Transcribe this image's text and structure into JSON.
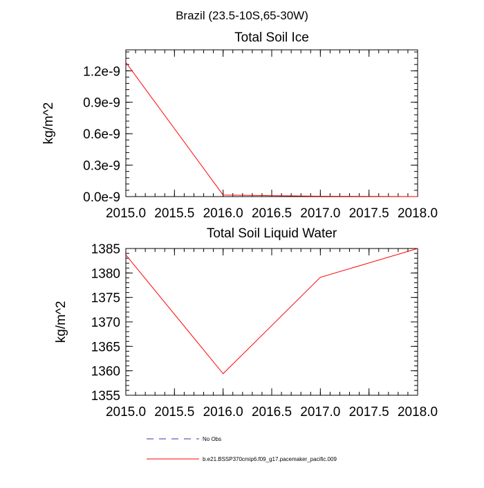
{
  "figure": {
    "title": "Brazil (23.5-10S,65-30W)"
  },
  "chart_data": [
    {
      "type": "line",
      "title": "Total Soil Ice",
      "xlabel": "",
      "ylabel": "kg/m^2",
      "xlim": [
        2015.0,
        2018.0
      ],
      "ylim": [
        0.0,
        1.4e-09
      ],
      "xticks": [
        2015.0,
        2015.5,
        2016.0,
        2016.5,
        2017.0,
        2017.5,
        2018.0
      ],
      "xtick_labels": [
        "2015.0",
        "2015.5",
        "2016.0",
        "2016.5",
        "2017.0",
        "2017.5",
        "2018.0"
      ],
      "yticks": [
        0.0,
        3e-10,
        6e-10,
        9e-10,
        1.2e-09
      ],
      "ytick_labels": [
        "0.0e-9",
        "0.3e-9",
        "0.6e-9",
        "0.9e-9",
        "1.2e-9"
      ],
      "y_minor_step": 6e-11,
      "grid": false,
      "series": [
        {
          "name": "b.e21.BSSP370cmip6.f09_g17.pacemaker_pacific.009",
          "color": "#ff0000",
          "x": [
            2015,
            2016,
            2017,
            2018
          ],
          "y": [
            1.28e-09,
            1.5e-11,
            3e-12,
            0.0
          ]
        }
      ]
    },
    {
      "type": "line",
      "title": "Total Soil Liquid Water",
      "xlabel": "",
      "ylabel": "kg/m^2",
      "xlim": [
        2015.0,
        2018.0
      ],
      "ylim": [
        1355,
        1385
      ],
      "xticks": [
        2015.0,
        2015.5,
        2016.0,
        2016.5,
        2017.0,
        2017.5,
        2018.0
      ],
      "xtick_labels": [
        "2015.0",
        "2015.5",
        "2016.0",
        "2016.5",
        "2017.0",
        "2017.5",
        "2018.0"
      ],
      "yticks": [
        1355,
        1360,
        1365,
        1370,
        1375,
        1380,
        1385
      ],
      "ytick_labels": [
        "1355",
        "1360",
        "1365",
        "1370",
        "1375",
        "1380",
        "1385"
      ],
      "y_minor_step": 1,
      "grid": false,
      "series": [
        {
          "name": "b.e21.BSSP370cmip6.f09_g17.pacemaker_pacific.009",
          "color": "#ff0000",
          "x": [
            2015,
            2016,
            2017,
            2018
          ],
          "y": [
            1383.7,
            1359.4,
            1379.1,
            1385.0
          ]
        }
      ]
    }
  ],
  "legend": {
    "placement": "bottom-center",
    "items": [
      {
        "label": "No Obs",
        "color": "#3333aa",
        "style": "dashed"
      },
      {
        "label": "b.e21.BSSP370cmip6.f09_g17.pacemaker_pacific.009",
        "color": "#ff0000",
        "style": "solid"
      }
    ]
  }
}
